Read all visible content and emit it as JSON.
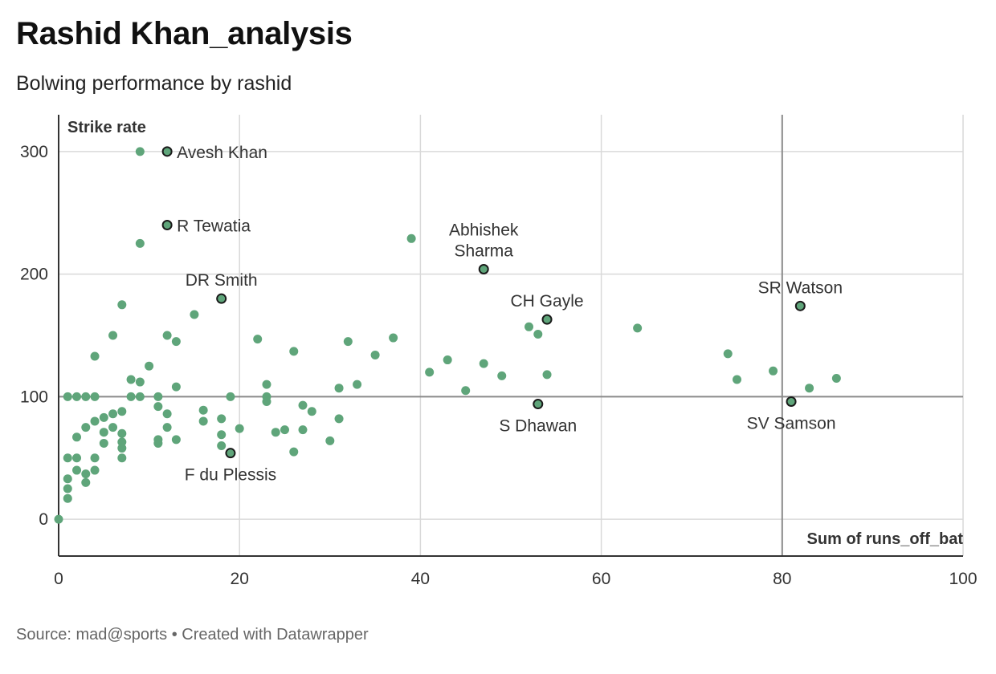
{
  "header": {
    "title": "Rashid Khan_analysis",
    "subtitle": "Bolwing performance by rashid"
  },
  "footer": {
    "source": "Source: mad@sports • Created with Datawrapper"
  },
  "colors": {
    "dot": "#5fa57a",
    "highlight_stroke": "#1a1a1a",
    "grid": "#d9d9d9",
    "reference_line": "#8a8a8a",
    "axis": "#333333"
  },
  "chart_data": {
    "type": "scatter",
    "title": "Rashid Khan_analysis",
    "subtitle": "Bolwing performance by rashid",
    "xlabel": "Sum of runs_off_bat",
    "ylabel": "Strike rate",
    "xlim": [
      0,
      100
    ],
    "ylim": [
      -30,
      330
    ],
    "x_ticks": [
      0,
      20,
      40,
      60,
      80,
      100
    ],
    "y_ticks": [
      0,
      100,
      200,
      300
    ],
    "grid": true,
    "reference_lines": {
      "x": 80,
      "y": 100
    },
    "points": [
      {
        "x": 0,
        "y": 0
      },
      {
        "x": 1,
        "y": 17
      },
      {
        "x": 1,
        "y": 25
      },
      {
        "x": 1,
        "y": 33
      },
      {
        "x": 1,
        "y": 50
      },
      {
        "x": 1,
        "y": 100
      },
      {
        "x": 2,
        "y": 40
      },
      {
        "x": 2,
        "y": 50
      },
      {
        "x": 2,
        "y": 67
      },
      {
        "x": 2,
        "y": 100
      },
      {
        "x": 3,
        "y": 30
      },
      {
        "x": 3,
        "y": 37
      },
      {
        "x": 3,
        "y": 75
      },
      {
        "x": 3,
        "y": 100
      },
      {
        "x": 4,
        "y": 40
      },
      {
        "x": 4,
        "y": 50
      },
      {
        "x": 4,
        "y": 80
      },
      {
        "x": 4,
        "y": 100
      },
      {
        "x": 4,
        "y": 133
      },
      {
        "x": 5,
        "y": 62
      },
      {
        "x": 5,
        "y": 71
      },
      {
        "x": 5,
        "y": 83
      },
      {
        "x": 6,
        "y": 75
      },
      {
        "x": 6,
        "y": 86
      },
      {
        "x": 6,
        "y": 150
      },
      {
        "x": 7,
        "y": 50
      },
      {
        "x": 7,
        "y": 58
      },
      {
        "x": 7,
        "y": 63
      },
      {
        "x": 7,
        "y": 70
      },
      {
        "x": 7,
        "y": 88
      },
      {
        "x": 7,
        "y": 175
      },
      {
        "x": 8,
        "y": 100
      },
      {
        "x": 8,
        "y": 114
      },
      {
        "x": 9,
        "y": 100
      },
      {
        "x": 9,
        "y": 112
      },
      {
        "x": 9,
        "y": 225
      },
      {
        "x": 9,
        "y": 300
      },
      {
        "x": 10,
        "y": 125
      },
      {
        "x": 11,
        "y": 62
      },
      {
        "x": 11,
        "y": 65
      },
      {
        "x": 11,
        "y": 92
      },
      {
        "x": 11,
        "y": 100
      },
      {
        "x": 12,
        "y": 75
      },
      {
        "x": 12,
        "y": 86
      },
      {
        "x": 12,
        "y": 150
      },
      {
        "x": 13,
        "y": 65
      },
      {
        "x": 13,
        "y": 108
      },
      {
        "x": 13,
        "y": 145
      },
      {
        "x": 15,
        "y": 167
      },
      {
        "x": 16,
        "y": 80
      },
      {
        "x": 16,
        "y": 89
      },
      {
        "x": 18,
        "y": 60
      },
      {
        "x": 18,
        "y": 69
      },
      {
        "x": 18,
        "y": 82
      },
      {
        "x": 19,
        "y": 100
      },
      {
        "x": 20,
        "y": 74
      },
      {
        "x": 22,
        "y": 147
      },
      {
        "x": 23,
        "y": 96
      },
      {
        "x": 23,
        "y": 100
      },
      {
        "x": 23,
        "y": 110
      },
      {
        "x": 24,
        "y": 71
      },
      {
        "x": 25,
        "y": 73
      },
      {
        "x": 26,
        "y": 55
      },
      {
        "x": 26,
        "y": 137
      },
      {
        "x": 27,
        "y": 73
      },
      {
        "x": 27,
        "y": 93
      },
      {
        "x": 28,
        "y": 88
      },
      {
        "x": 30,
        "y": 64
      },
      {
        "x": 31,
        "y": 82
      },
      {
        "x": 31,
        "y": 107
      },
      {
        "x": 32,
        "y": 145
      },
      {
        "x": 33,
        "y": 110
      },
      {
        "x": 35,
        "y": 134
      },
      {
        "x": 37,
        "y": 148
      },
      {
        "x": 39,
        "y": 229
      },
      {
        "x": 41,
        "y": 120
      },
      {
        "x": 43,
        "y": 130
      },
      {
        "x": 45,
        "y": 105
      },
      {
        "x": 47,
        "y": 127
      },
      {
        "x": 49,
        "y": 117
      },
      {
        "x": 52,
        "y": 157
      },
      {
        "x": 53,
        "y": 151
      },
      {
        "x": 54,
        "y": 118
      },
      {
        "x": 64,
        "y": 156
      },
      {
        "x": 74,
        "y": 135
      },
      {
        "x": 75,
        "y": 114
      },
      {
        "x": 79,
        "y": 121
      },
      {
        "x": 83,
        "y": 107
      },
      {
        "x": 86,
        "y": 115
      }
    ],
    "labeled_points": [
      {
        "name": "Avesh Khan",
        "x": 12,
        "y": 300,
        "label_pos": "right"
      },
      {
        "name": "R Tewatia",
        "x": 12,
        "y": 240,
        "label_pos": "right"
      },
      {
        "name": "DR Smith",
        "x": 18,
        "y": 180,
        "label_pos": "above"
      },
      {
        "name": "F du Plessis",
        "x": 19,
        "y": 54,
        "label_pos": "below"
      },
      {
        "name": "Abhishek Sharma",
        "lines": [
          "Abhishek",
          "Sharma"
        ],
        "x": 47,
        "y": 204,
        "label_pos": "above"
      },
      {
        "name": "CH Gayle",
        "x": 54,
        "y": 163,
        "label_pos": "above"
      },
      {
        "name": "S Dhawan",
        "x": 53,
        "y": 94,
        "label_pos": "below"
      },
      {
        "name": "SR Watson",
        "x": 82,
        "y": 174,
        "label_pos": "above"
      },
      {
        "name": "SV Samson",
        "x": 81,
        "y": 96,
        "label_pos": "below"
      }
    ]
  }
}
